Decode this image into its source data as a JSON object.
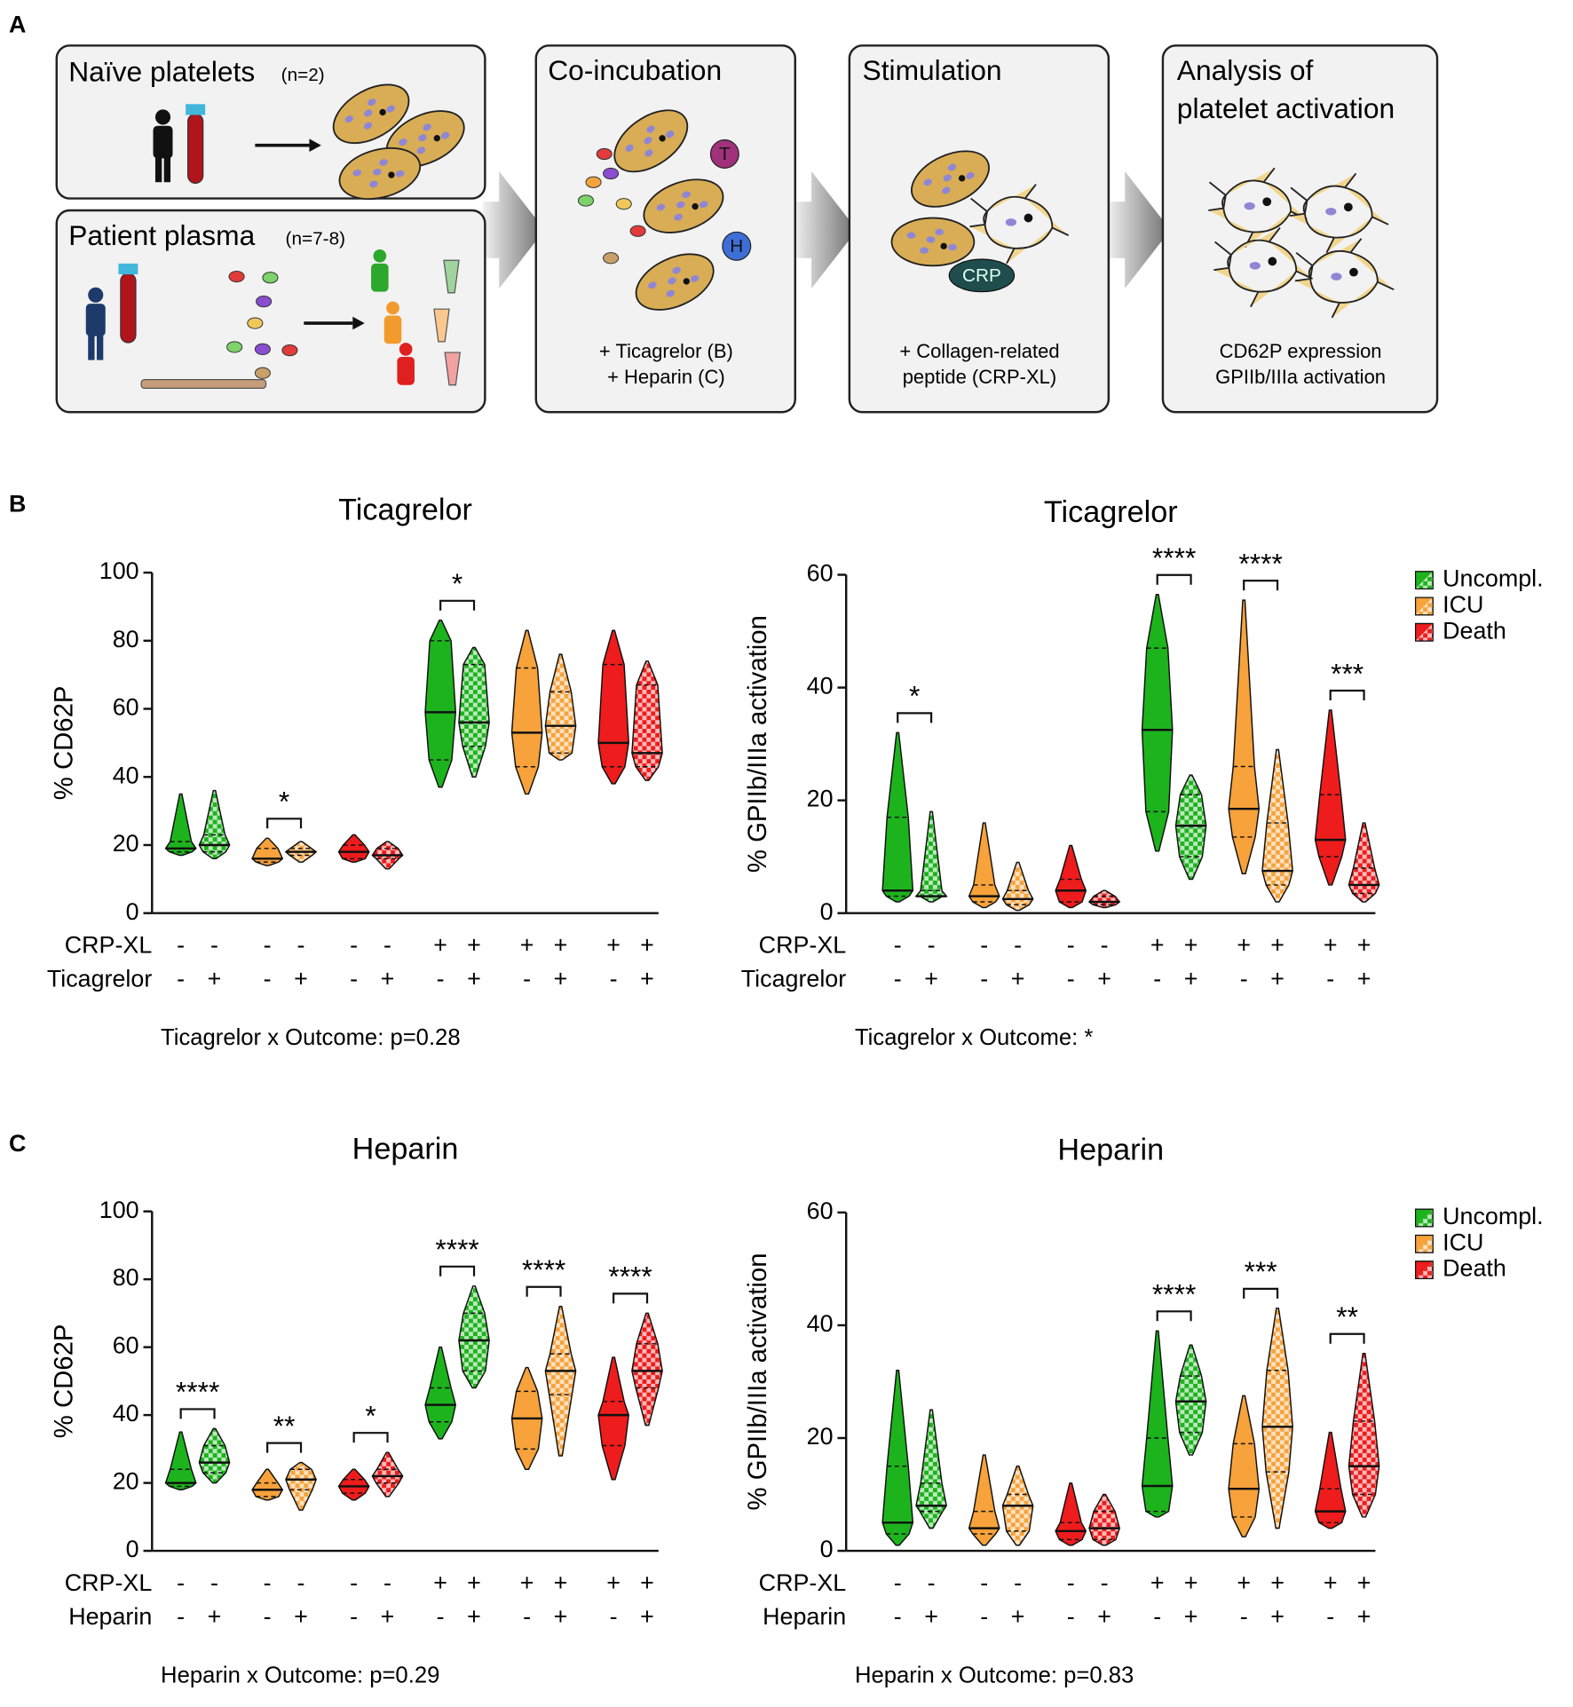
{
  "panel_labels": [
    "A",
    "B",
    "C"
  ],
  "diagram": {
    "naive": {
      "title": "Naïve platelets",
      "n": "(n=2)"
    },
    "plasma": {
      "title": "Patient plasma",
      "n": "(n=7-8)"
    },
    "coincubation": {
      "title": "Co-incubation",
      "badges": [
        "T",
        "H"
      ],
      "lines": [
        "+ Ticagrelor (B)",
        "+ Heparin (C)"
      ]
    },
    "stimulation": {
      "title": "Stimulation",
      "badge": "CRP",
      "lines": [
        "+ Collagen-related",
        "peptide (CRP-XL)"
      ]
    },
    "analysis": {
      "title_lines": [
        "Analysis of",
        "platelet activation"
      ],
      "lines": [
        "CD62P expression",
        "GPIIb/IIIa activation"
      ]
    }
  },
  "chart_data": [
    {
      "type": "violin",
      "title": "Ticagrelor",
      "ylabel": "% CD62P",
      "ylim": [
        0,
        100
      ],
      "yticks": [
        0,
        20,
        40,
        60,
        80,
        100
      ],
      "row_labels": [
        "CRP-XL",
        "Ticagrelor"
      ],
      "crp_signs": [
        "-",
        "-",
        "-",
        "-",
        "-",
        "-",
        "+",
        "+",
        "+",
        "+",
        "+",
        "+"
      ],
      "drug_signs": [
        "-",
        "+",
        "-",
        "+",
        "-",
        "+",
        "-",
        "+",
        "-",
        "+",
        "-",
        "+"
      ],
      "violins": [
        {
          "color": "#1db31d",
          "hatched": false,
          "min": 17,
          "q1": 18,
          "median": 19,
          "q3": 21,
          "max": 35
        },
        {
          "color": "#1db31d",
          "hatched": true,
          "min": 16,
          "q1": 18,
          "median": 20,
          "q3": 23,
          "max": 36
        },
        {
          "color": "#f7a23b",
          "hatched": false,
          "min": 14,
          "q1": 15,
          "median": 16,
          "q3": 19,
          "max": 22
        },
        {
          "color": "#f7a23b",
          "hatched": true,
          "min": 15,
          "q1": 17,
          "median": 18,
          "q3": 19,
          "max": 21
        },
        {
          "color": "#ee1c1c",
          "hatched": false,
          "min": 15,
          "q1": 16,
          "median": 18,
          "q3": 20,
          "max": 23
        },
        {
          "color": "#ee1c1c",
          "hatched": true,
          "min": 13,
          "q1": 16,
          "median": 17,
          "q3": 19,
          "max": 21
        },
        {
          "color": "#1db31d",
          "hatched": false,
          "min": 37,
          "q1": 45,
          "median": 59,
          "q3": 80,
          "max": 86
        },
        {
          "color": "#1db31d",
          "hatched": true,
          "min": 40,
          "q1": 49,
          "median": 56,
          "q3": 73,
          "max": 78
        },
        {
          "color": "#f7a23b",
          "hatched": false,
          "min": 35,
          "q1": 43,
          "median": 53,
          "q3": 72,
          "max": 83
        },
        {
          "color": "#f7a23b",
          "hatched": true,
          "min": 45,
          "q1": 47,
          "median": 55,
          "q3": 65,
          "max": 76
        },
        {
          "color": "#ee1c1c",
          "hatched": false,
          "min": 38,
          "q1": 43,
          "median": 50,
          "q3": 73,
          "max": 83
        },
        {
          "color": "#ee1c1c",
          "hatched": true,
          "min": 39,
          "q1": 43,
          "median": 47,
          "q3": 67,
          "max": 74
        }
      ],
      "annotations": [
        {
          "pair": 1,
          "text": "*"
        },
        {
          "pair": 3,
          "text": "*"
        }
      ],
      "footnote": "Ticagrelor x Outcome: p=0.28"
    },
    {
      "type": "violin",
      "title": "Ticagrelor",
      "ylabel": "% GPIIb/IIIa activation",
      "ylim": [
        0,
        60
      ],
      "yticks": [
        0,
        20,
        40,
        60
      ],
      "row_labels": [
        "CRP-XL",
        "Ticagrelor"
      ],
      "crp_signs": [
        "-",
        "-",
        "-",
        "-",
        "-",
        "-",
        "+",
        "+",
        "+",
        "+",
        "+",
        "+"
      ],
      "drug_signs": [
        "-",
        "+",
        "-",
        "+",
        "-",
        "+",
        "-",
        "+",
        "-",
        "+",
        "-",
        "+"
      ],
      "violins": [
        {
          "color": "#1db31d",
          "hatched": false,
          "min": 2,
          "q1": 3,
          "median": 4,
          "q3": 17,
          "max": 32
        },
        {
          "color": "#1db31d",
          "hatched": true,
          "min": 2,
          "q1": 3,
          "median": 3,
          "q3": 4,
          "max": 18
        },
        {
          "color": "#f7a23b",
          "hatched": false,
          "min": 1,
          "q1": 2,
          "median": 3,
          "q3": 5,
          "max": 16
        },
        {
          "color": "#f7a23b",
          "hatched": true,
          "min": 0.5,
          "q1": 1.5,
          "median": 2.5,
          "q3": 4,
          "max": 9
        },
        {
          "color": "#ee1c1c",
          "hatched": false,
          "min": 1,
          "q1": 2,
          "median": 4,
          "q3": 6,
          "max": 12
        },
        {
          "color": "#ee1c1c",
          "hatched": true,
          "min": 1,
          "q1": 1.5,
          "median": 2,
          "q3": 3,
          "max": 4
        },
        {
          "color": "#1db31d",
          "hatched": false,
          "min": 11,
          "q1": 18,
          "median": 32.5,
          "q3": 47,
          "max": 56.5
        },
        {
          "color": "#1db31d",
          "hatched": true,
          "min": 6,
          "q1": 10,
          "median": 15.5,
          "q3": 21,
          "max": 24.5
        },
        {
          "color": "#f7a23b",
          "hatched": false,
          "min": 7,
          "q1": 13.5,
          "median": 18.5,
          "q3": 26,
          "max": 55.5
        },
        {
          "color": "#f7a23b",
          "hatched": true,
          "min": 2,
          "q1": 5,
          "median": 7.5,
          "q3": 16,
          "max": 29
        },
        {
          "color": "#ee1c1c",
          "hatched": false,
          "min": 5,
          "q1": 10,
          "median": 13,
          "q3": 21,
          "max": 36
        },
        {
          "color": "#ee1c1c",
          "hatched": true,
          "min": 2,
          "q1": 3.5,
          "median": 5,
          "q3": 8,
          "max": 16
        }
      ],
      "annotations": [
        {
          "pair": 0,
          "text": "*"
        },
        {
          "pair": 3,
          "text": "****"
        },
        {
          "pair": 4,
          "text": "****"
        },
        {
          "pair": 5,
          "text": "***"
        }
      ],
      "legend": [
        {
          "name": "Uncompl.",
          "color": "#1db31d"
        },
        {
          "name": "ICU",
          "color": "#f7a23b"
        },
        {
          "name": "Death",
          "color": "#ee1c1c"
        }
      ],
      "footnote": "Ticagrelor x Outcome: *"
    },
    {
      "type": "violin",
      "title": "Heparin",
      "ylabel": "% CD62P",
      "ylim": [
        0,
        100
      ],
      "yticks": [
        0,
        20,
        40,
        60,
        80,
        100
      ],
      "row_labels": [
        "CRP-XL",
        "Heparin"
      ],
      "crp_signs": [
        "-",
        "-",
        "-",
        "-",
        "-",
        "-",
        "+",
        "+",
        "+",
        "+",
        "+",
        "+"
      ],
      "drug_signs": [
        "-",
        "+",
        "-",
        "+",
        "-",
        "+",
        "-",
        "+",
        "-",
        "+",
        "-",
        "+"
      ],
      "violins": [
        {
          "color": "#1db31d",
          "hatched": false,
          "min": 18,
          "q1": 19,
          "median": 20,
          "q3": 24,
          "max": 35
        },
        {
          "color": "#1db31d",
          "hatched": true,
          "min": 20,
          "q1": 23,
          "median": 26,
          "q3": 31,
          "max": 36
        },
        {
          "color": "#f7a23b",
          "hatched": false,
          "min": 15,
          "q1": 16,
          "median": 18,
          "q3": 20,
          "max": 24
        },
        {
          "color": "#f7a23b",
          "hatched": true,
          "min": 12,
          "q1": 18,
          "median": 21,
          "q3": 24,
          "max": 26
        },
        {
          "color": "#ee1c1c",
          "hatched": false,
          "min": 15,
          "q1": 17,
          "median": 19,
          "q3": 21,
          "max": 24
        },
        {
          "color": "#ee1c1c",
          "hatched": true,
          "min": 16,
          "q1": 20,
          "median": 22,
          "q3": 24,
          "max": 29
        },
        {
          "color": "#1db31d",
          "hatched": false,
          "min": 33,
          "q1": 38,
          "median": 43,
          "q3": 48,
          "max": 60
        },
        {
          "color": "#1db31d",
          "hatched": true,
          "min": 48,
          "q1": 53,
          "median": 62,
          "q3": 70,
          "max": 78
        },
        {
          "color": "#f7a23b",
          "hatched": false,
          "min": 24,
          "q1": 30,
          "median": 39,
          "q3": 47,
          "max": 54
        },
        {
          "color": "#f7a23b",
          "hatched": true,
          "min": 28,
          "q1": 46,
          "median": 53,
          "q3": 58,
          "max": 72
        },
        {
          "color": "#ee1c1c",
          "hatched": false,
          "min": 21,
          "q1": 31,
          "median": 40,
          "q3": 44,
          "max": 57
        },
        {
          "color": "#ee1c1c",
          "hatched": true,
          "min": 37,
          "q1": 48,
          "median": 53,
          "q3": 61,
          "max": 70
        }
      ],
      "annotations": [
        {
          "pair": 0,
          "text": "****"
        },
        {
          "pair": 1,
          "text": "**"
        },
        {
          "pair": 2,
          "text": "*"
        },
        {
          "pair": 3,
          "text": "****"
        },
        {
          "pair": 4,
          "text": "****"
        },
        {
          "pair": 5,
          "text": "****"
        }
      ],
      "footnote": "Heparin x Outcome: p=0.29"
    },
    {
      "type": "violin",
      "title": "Heparin",
      "ylabel": "% GPIIb/IIIa activation",
      "ylim": [
        0,
        60
      ],
      "yticks": [
        0,
        20,
        40,
        60
      ],
      "row_labels": [
        "CRP-XL",
        "Heparin"
      ],
      "crp_signs": [
        "-",
        "-",
        "-",
        "-",
        "-",
        "-",
        "+",
        "+",
        "+",
        "+",
        "+",
        "+"
      ],
      "drug_signs": [
        "-",
        "+",
        "-",
        "+",
        "-",
        "+",
        "-",
        "+",
        "-",
        "+",
        "-",
        "+"
      ],
      "violins": [
        {
          "color": "#1db31d",
          "hatched": false,
          "min": 1,
          "q1": 3,
          "median": 5,
          "q3": 15,
          "max": 32
        },
        {
          "color": "#1db31d",
          "hatched": true,
          "min": 4,
          "q1": 7,
          "median": 8,
          "q3": 12,
          "max": 25
        },
        {
          "color": "#f7a23b",
          "hatched": false,
          "min": 1,
          "q1": 3,
          "median": 4,
          "q3": 7,
          "max": 17
        },
        {
          "color": "#f7a23b",
          "hatched": true,
          "min": 1,
          "q1": 3.5,
          "median": 8,
          "q3": 10,
          "max": 15
        },
        {
          "color": "#ee1c1c",
          "hatched": false,
          "min": 1,
          "q1": 2,
          "median": 3.5,
          "q3": 5,
          "max": 12
        },
        {
          "color": "#ee1c1c",
          "hatched": true,
          "min": 1,
          "q1": 2,
          "median": 4,
          "q3": 7,
          "max": 10
        },
        {
          "color": "#1db31d",
          "hatched": false,
          "min": 6,
          "q1": 7,
          "median": 11.5,
          "q3": 20,
          "max": 39
        },
        {
          "color": "#1db31d",
          "hatched": true,
          "min": 17,
          "q1": 21,
          "median": 26.5,
          "q3": 31,
          "max": 36.5
        },
        {
          "color": "#f7a23b",
          "hatched": false,
          "min": 2.5,
          "q1": 6,
          "median": 11,
          "q3": 19,
          "max": 27.5
        },
        {
          "color": "#f7a23b",
          "hatched": true,
          "min": 4,
          "q1": 14,
          "median": 22,
          "q3": 32,
          "max": 43
        },
        {
          "color": "#ee1c1c",
          "hatched": false,
          "min": 4,
          "q1": 5,
          "median": 7,
          "q3": 11,
          "max": 21
        },
        {
          "color": "#ee1c1c",
          "hatched": true,
          "min": 6,
          "q1": 10,
          "median": 15,
          "q3": 23,
          "max": 35
        }
      ],
      "annotations": [
        {
          "pair": 3,
          "text": "****"
        },
        {
          "pair": 4,
          "text": "***"
        },
        {
          "pair": 5,
          "text": "**"
        }
      ],
      "legend": [
        {
          "name": "Uncompl.",
          "color": "#1db31d"
        },
        {
          "name": "ICU",
          "color": "#f7a23b"
        },
        {
          "name": "Death",
          "color": "#ee1c1c"
        }
      ],
      "footnote": "Heparin x Outcome: p=0.83"
    }
  ]
}
